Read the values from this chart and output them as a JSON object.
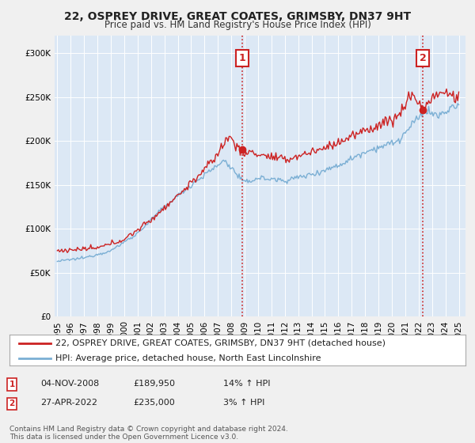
{
  "title": "22, OSPREY DRIVE, GREAT COATES, GRIMSBY, DN37 9HT",
  "subtitle": "Price paid vs. HM Land Registry's House Price Index (HPI)",
  "ylim": [
    0,
    320000
  ],
  "yticks": [
    0,
    50000,
    100000,
    150000,
    200000,
    250000,
    300000
  ],
  "ytick_labels": [
    "£0",
    "£50K",
    "£100K",
    "£150K",
    "£200K",
    "£250K",
    "£300K"
  ],
  "xstart_year": 1995,
  "xend_year": 2025,
  "hpi_color": "#7bafd4",
  "price_color": "#cc2222",
  "vline_color": "#cc2222",
  "plot_bg": "#dce8f5",
  "fig_bg": "#f0f0f0",
  "grid_color": "#ffffff",
  "legend_label_price": "22, OSPREY DRIVE, GREAT COATES, GRIMSBY, DN37 9HT (detached house)",
  "legend_label_hpi": "HPI: Average price, detached house, North East Lincolnshire",
  "sale1_date": "04-NOV-2008",
  "sale1_price": 189950,
  "sale1_pct": "14%",
  "sale1_dir": "↑",
  "sale1_year": 2008.84,
  "sale2_date": "27-APR-2022",
  "sale2_price": 235000,
  "sale2_pct": "3%",
  "sale2_dir": "↑",
  "sale2_year": 2022.32,
  "footer": "Contains HM Land Registry data © Crown copyright and database right 2024.\nThis data is licensed under the Open Government Licence v3.0.",
  "title_fontsize": 10,
  "subtitle_fontsize": 8.5,
  "tick_fontsize": 7.5,
  "legend_fontsize": 8,
  "footer_fontsize": 6.5,
  "hpi_anchors_x": [
    1995.0,
    1997.0,
    1999.0,
    2001.0,
    2003.0,
    2005.0,
    2007.5,
    2009.0,
    2010.0,
    2012.0,
    2014.0,
    2016.0,
    2018.0,
    2019.5,
    2020.5,
    2021.5,
    2022.5,
    2023.5,
    2024.5,
    2025.0
  ],
  "hpi_anchors_y": [
    63000,
    67000,
    75000,
    95000,
    125000,
    150000,
    178000,
    152000,
    158000,
    155000,
    162000,
    172000,
    188000,
    195000,
    200000,
    218000,
    235000,
    228000,
    238000,
    240000
  ],
  "price_anchors_x": [
    1995.0,
    1998.0,
    2000.0,
    2002.0,
    2004.5,
    2006.5,
    2007.8,
    2008.84,
    2010.0,
    2012.0,
    2013.0,
    2015.0,
    2017.0,
    2019.0,
    2020.5,
    2021.5,
    2022.32,
    2023.0,
    2024.0,
    2025.0
  ],
  "price_anchors_y": [
    75000,
    78000,
    88000,
    110000,
    145000,
    175000,
    205000,
    189950,
    185000,
    178000,
    183000,
    192000,
    205000,
    218000,
    228000,
    255000,
    235000,
    250000,
    255000,
    248000
  ]
}
